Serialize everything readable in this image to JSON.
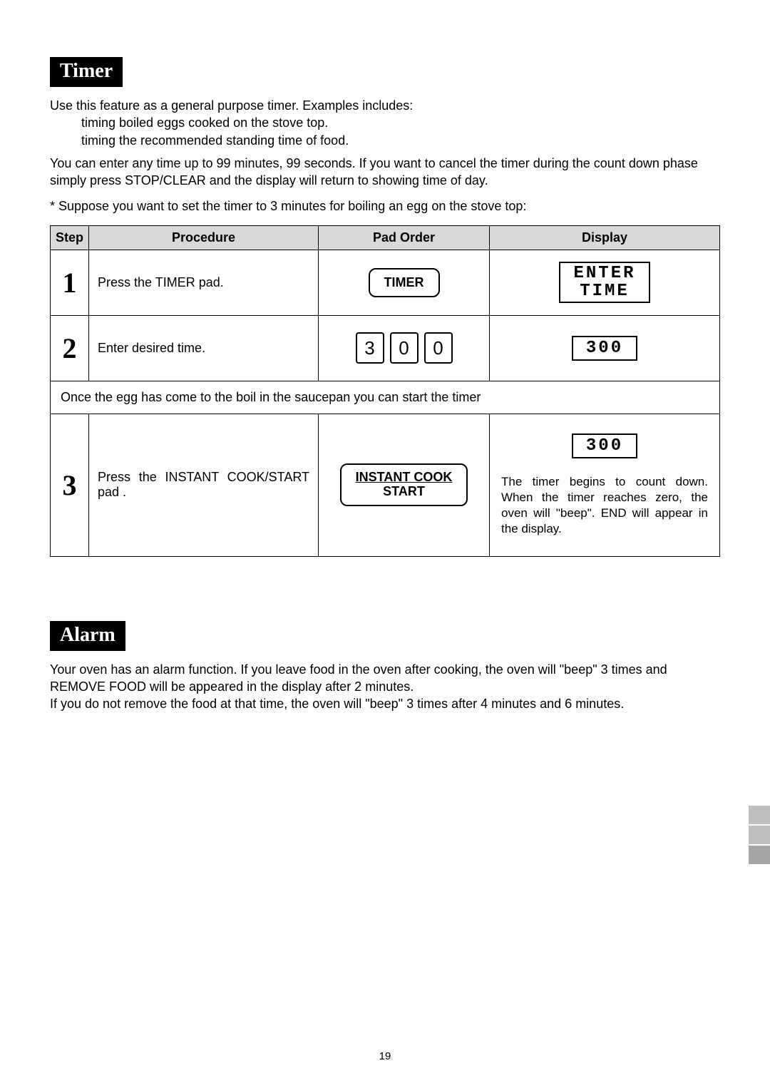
{
  "sections": {
    "timer": {
      "heading": "Timer",
      "intro1": "Use this feature as a general purpose timer. Examples includes:",
      "bullet1": "timing boiled eggs cooked on the stove top.",
      "bullet2": "timing the recommended standing time of food.",
      "intro2": "You can enter any time up to 99 minutes, 99 seconds. If you want to cancel the timer during the count down phase simply press STOP/CLEAR and the display will return to showing time of day.",
      "example": "* Suppose you want to set the timer to 3 minutes for boiling an egg on the stove top:"
    },
    "alarm": {
      "heading": "Alarm",
      "p1": "Your oven has an alarm function. If you leave food in the oven after cooking, the oven will \"beep\" 3 times and REMOVE FOOD will be appeared in the display after 2 minutes.",
      "p2": "If you do not remove the food at that time, the oven will \"beep\" 3 times after 4 minutes and 6 minutes."
    }
  },
  "table": {
    "headers": {
      "step": "Step",
      "procedure": "Procedure",
      "pad_order": "Pad Order",
      "display": "Display"
    },
    "rows": {
      "r1": {
        "num": "1",
        "procedure": "Press the TIMER pad.",
        "pad_label": "TIMER",
        "display_text": "ENTER\nTIME"
      },
      "r2": {
        "num": "2",
        "procedure": "Enter desired time.",
        "keys": [
          "3",
          "0",
          "0"
        ],
        "display_num": "300"
      },
      "note_row": "Once the egg has come to the boil in the saucepan you can start the timer",
      "r3": {
        "num": "3",
        "procedure": "Press  the  INSTANT  COOK/START pad .",
        "pad_line1": "INSTANT COOK",
        "pad_line2": "START",
        "display_num": "300",
        "display_note": "The timer begins to count down. When the timer reaches zero, the oven will \"beep\".  END will appear in the display."
      }
    }
  },
  "page_number": "19"
}
